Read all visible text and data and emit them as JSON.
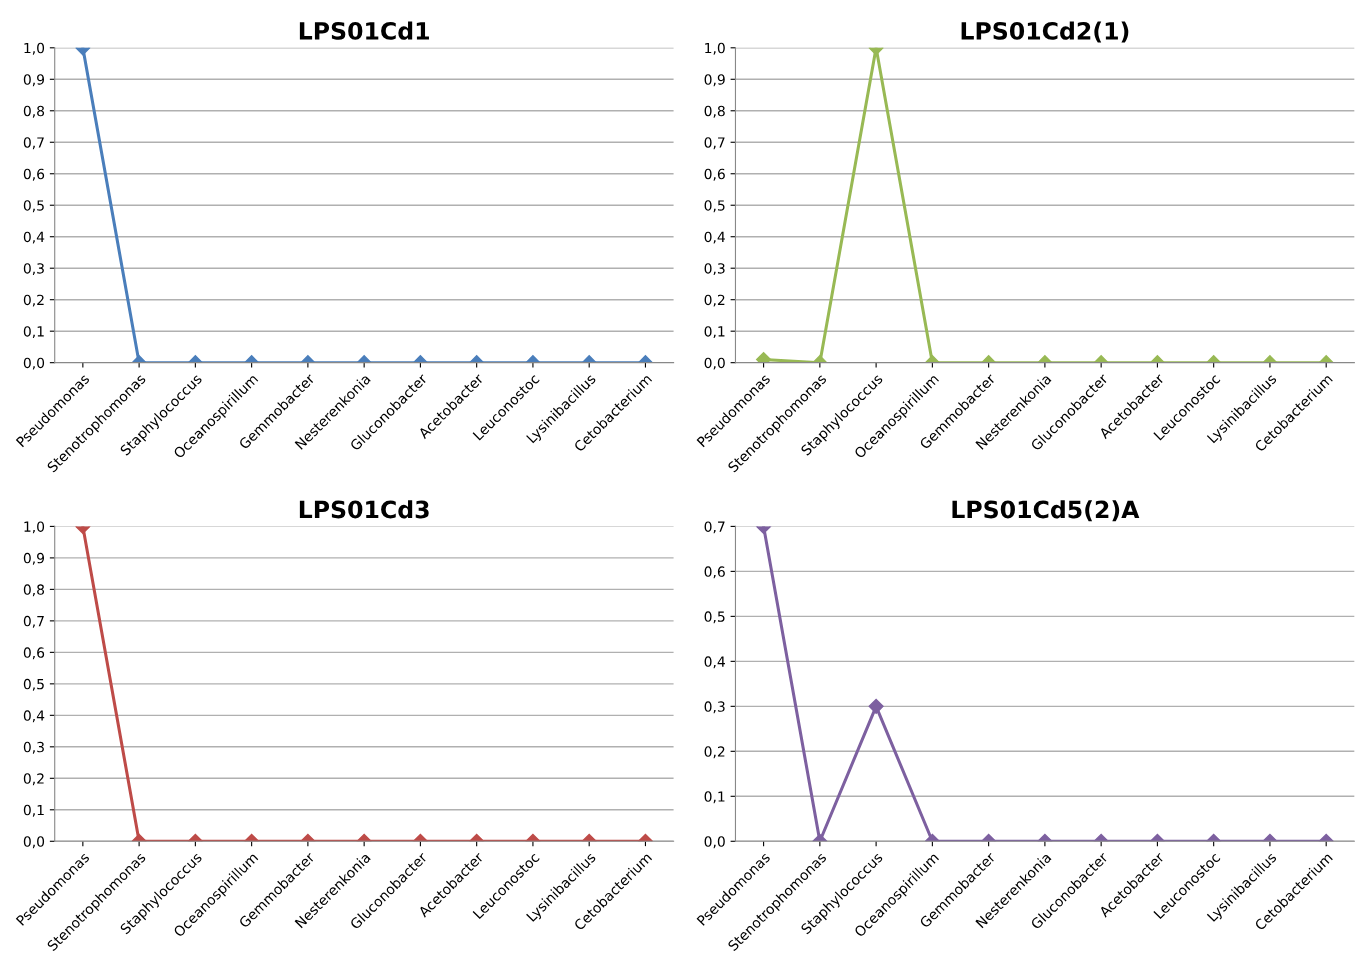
{
  "chart_data": [
    {
      "type": "line",
      "title": "LPS01Cd1",
      "categories": [
        "Pseudomonas",
        "Stenotrophomonas",
        "Staphylococcus",
        "Oceanospirillum",
        "Gemmobacter",
        "Nesterenkonia",
        "Gluconobacter",
        "Acetobacter",
        "Leuconostoc",
        "Lysinibacillus",
        "Cetobacterium"
      ],
      "series": [
        {
          "color": "#4a7ebb",
          "values": [
            1.0,
            0,
            0,
            0,
            0,
            0,
            0,
            0,
            0,
            0,
            0
          ]
        }
      ],
      "ylim": [
        0,
        1.0
      ],
      "yticks": [
        {
          "value": 0,
          "label": "0,0"
        },
        {
          "value": 0.1,
          "label": "0,1"
        },
        {
          "value": 0.2,
          "label": "0,2"
        },
        {
          "value": 0.3,
          "label": "0,3"
        },
        {
          "value": 0.4,
          "label": "0,4"
        },
        {
          "value": 0.5,
          "label": "0,5"
        },
        {
          "value": 0.6,
          "label": "0,6"
        },
        {
          "value": 0.7,
          "label": "0,7"
        },
        {
          "value": 0.8,
          "label": "0,8"
        },
        {
          "value": 0.9,
          "label": "0,9"
        },
        {
          "value": 1.0,
          "label": "1,0"
        }
      ],
      "grid": "y",
      "marker": "diamond",
      "line_style": "solid"
    },
    {
      "type": "line",
      "title": "LPS01Cd2(1)",
      "categories": [
        "Pseudomonas",
        "Stenotrophomonas",
        "Staphylococcus",
        "Oceanospirillum",
        "Gemmobacter",
        "Nesterenkonia",
        "Gluconobacter",
        "Acetobacter",
        "Leuconostoc",
        "Lysinibacillus",
        "Cetobacterium"
      ],
      "series": [
        {
          "color": "#98b954",
          "values": [
            0.01,
            0,
            1.0,
            0,
            0,
            0,
            0,
            0,
            0,
            0,
            0
          ]
        }
      ],
      "ylim": [
        0,
        1.0
      ],
      "yticks": [
        {
          "value": 0,
          "label": "0,0"
        },
        {
          "value": 0.1,
          "label": "0,1"
        },
        {
          "value": 0.2,
          "label": "0,2"
        },
        {
          "value": 0.3,
          "label": "0,3"
        },
        {
          "value": 0.4,
          "label": "0,4"
        },
        {
          "value": 0.5,
          "label": "0,5"
        },
        {
          "value": 0.6,
          "label": "0,6"
        },
        {
          "value": 0.7,
          "label": "0,7"
        },
        {
          "value": 0.8,
          "label": "0,8"
        },
        {
          "value": 0.9,
          "label": "0,9"
        },
        {
          "value": 1.0,
          "label": "1,0"
        }
      ],
      "grid": "y",
      "marker": "diamond",
      "line_style": "solid"
    },
    {
      "type": "line",
      "title": "LPS01Cd3",
      "categories": [
        "Pseudomonas",
        "Stenotrophomonas",
        "Staphylococcus",
        "Oceanospirillum",
        "Gemmobacter",
        "Nesterenkonia",
        "Gluconobacter",
        "Acetobacter",
        "Leuconostoc",
        "Lysinibacillus",
        "Cetobacterium"
      ],
      "series": [
        {
          "color": "#be4b48",
          "values": [
            1.0,
            0,
            0,
            0,
            0,
            0,
            0,
            0,
            0,
            0,
            0
          ]
        }
      ],
      "ylim": [
        0,
        1.0
      ],
      "yticks": [
        {
          "value": 0,
          "label": "0,0"
        },
        {
          "value": 0.1,
          "label": "0,1"
        },
        {
          "value": 0.2,
          "label": "0,2"
        },
        {
          "value": 0.3,
          "label": "0,3"
        },
        {
          "value": 0.4,
          "label": "0,4"
        },
        {
          "value": 0.5,
          "label": "0,5"
        },
        {
          "value": 0.6,
          "label": "0,6"
        },
        {
          "value": 0.7,
          "label": "0,7"
        },
        {
          "value": 0.8,
          "label": "0,8"
        },
        {
          "value": 0.9,
          "label": "0,9"
        },
        {
          "value": 1.0,
          "label": "1,0"
        }
      ],
      "grid": "y",
      "marker": "diamond",
      "line_style": "solid"
    },
    {
      "type": "line",
      "title": "LPS01Cd5(2)A",
      "categories": [
        "Pseudomonas",
        "Stenotrophomonas",
        "Staphylococcus",
        "Oceanospirillum",
        "Gemmobacter",
        "Nesterenkonia",
        "Gluconobacter",
        "Acetobacter",
        "Leuconostoc",
        "Lysinibacillus",
        "Cetobacterium"
      ],
      "series": [
        {
          "color": "#7d60a0",
          "values": [
            0.7,
            0,
            0.3,
            0,
            0,
            0,
            0,
            0,
            0,
            0,
            0
          ]
        }
      ],
      "ylim": [
        0,
        0.7
      ],
      "yticks": [
        {
          "value": 0,
          "label": "0,0"
        },
        {
          "value": 0.1,
          "label": "0,1"
        },
        {
          "value": 0.2,
          "label": "0,2"
        },
        {
          "value": 0.3,
          "label": "0,3"
        },
        {
          "value": 0.4,
          "label": "0,4"
        },
        {
          "value": 0.5,
          "label": "0,5"
        },
        {
          "value": 0.6,
          "label": "0,6"
        },
        {
          "value": 0.7,
          "label": "0,7"
        }
      ],
      "grid": "y",
      "marker": "diamond",
      "line_style": "solid"
    }
  ]
}
